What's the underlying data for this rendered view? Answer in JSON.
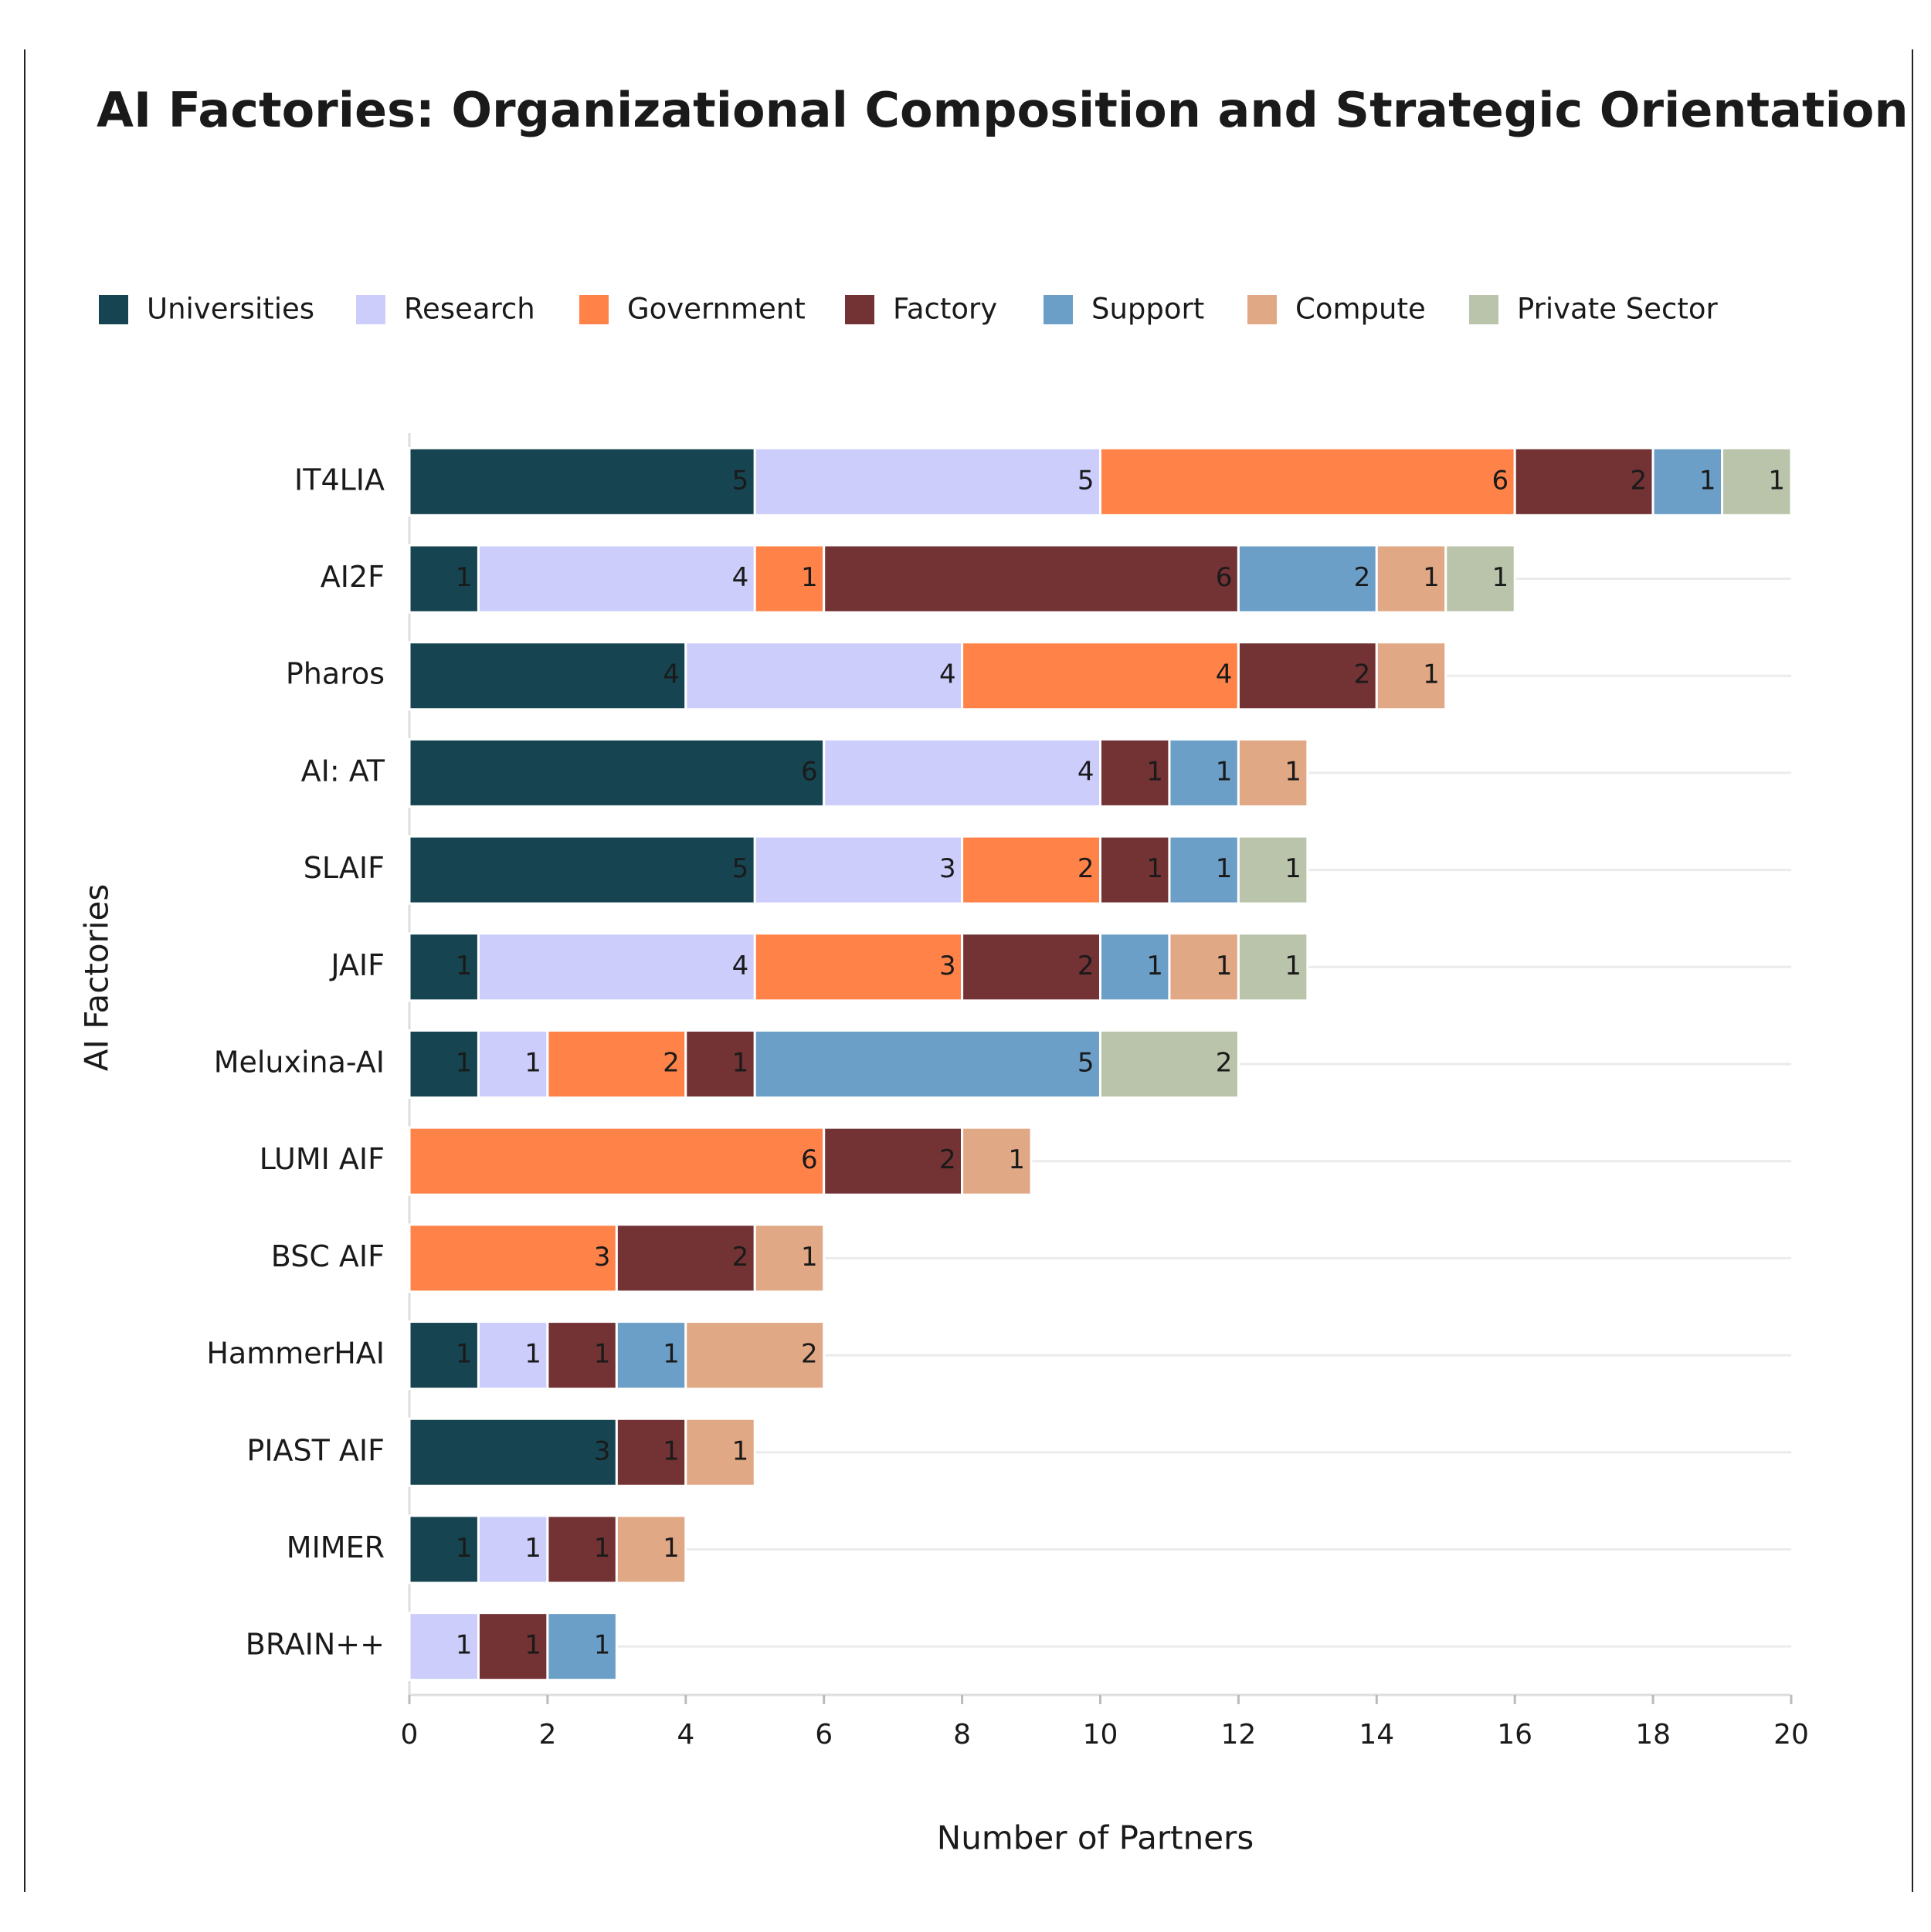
{
  "chart_data": {
    "type": "stacked-bar-horizontal",
    "title": "AI Factories: Organizational Composition and Strategic Orientation",
    "x_label": "Number of Partners",
    "y_label": "AI Factories",
    "categories": [
      "IT4LIA",
      "AI2F",
      "Pharos",
      "AI: AT",
      "SLAIF",
      "JAIF",
      "Meluxina-AI",
      "LUMI AIF",
      "BSC AIF",
      "HammerHAI",
      "PIAST AIF",
      "MIMER",
      "BRAIN++"
    ],
    "series": [
      {
        "name": "Universities",
        "color": "#164551",
        "values": [
          5,
          1,
          4,
          6,
          5,
          1,
          1,
          null,
          null,
          1,
          3,
          1,
          null
        ]
      },
      {
        "name": "Research",
        "color": "#cccdfb",
        "values": [
          5,
          4,
          4,
          4,
          3,
          4,
          1,
          null,
          null,
          1,
          null,
          1,
          1
        ]
      },
      {
        "name": "Government",
        "color": "#ff8349",
        "values": [
          6,
          1,
          4,
          null,
          2,
          3,
          2,
          6,
          3,
          null,
          null,
          null,
          null
        ]
      },
      {
        "name": "Factory",
        "color": "#733234",
        "values": [
          2,
          6,
          2,
          1,
          1,
          2,
          1,
          2,
          2,
          1,
          1,
          1,
          1
        ]
      },
      {
        "name": "Support",
        "color": "#6b9fc8",
        "values": [
          1,
          2,
          null,
          1,
          1,
          1,
          5,
          null,
          null,
          1,
          null,
          null,
          1
        ]
      },
      {
        "name": "Compute",
        "color": "#e0a884",
        "values": [
          null,
          1,
          1,
          1,
          null,
          1,
          null,
          1,
          1,
          2,
          1,
          1,
          null
        ]
      },
      {
        "name": "Private Sector",
        "color": "#bac4aa",
        "values": [
          1,
          1,
          null,
          null,
          1,
          1,
          2,
          null,
          null,
          null,
          null,
          null,
          null
        ]
      }
    ],
    "xlim": [
      0,
      20
    ],
    "xticks": [
      0,
      2,
      4,
      6,
      8,
      10,
      12,
      14,
      16,
      18,
      20
    ],
    "grid": true,
    "legend": "top"
  }
}
